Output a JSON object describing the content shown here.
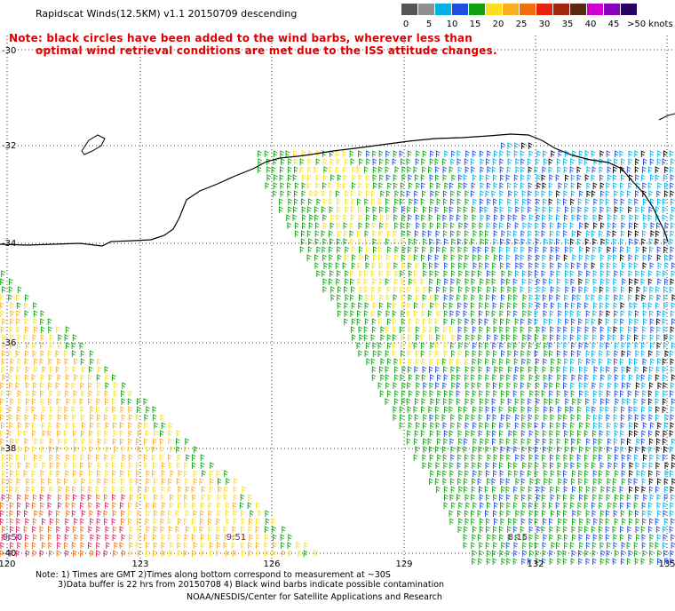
{
  "title": "Rapidscat Winds(12.5KM) v1.1 20150709 descending",
  "note": {
    "line1": "Note: black circles have been added to the wind barbs, wherever less than",
    "line2": "optimal wind retrieval conditions are met due to the ISS attitude changes."
  },
  "legend": {
    "ticks": [
      "0",
      "5",
      "10",
      "15",
      "20",
      "25",
      "30",
      "35",
      "40",
      "45"
    ],
    "unit": ">50 knots",
    "colors": [
      "#555555",
      "#909090",
      "#00b0e8",
      "#1d4ee0",
      "#10a010",
      "#f8e020",
      "#f8b020",
      "#f07010",
      "#e82010",
      "#a02810",
      "#5a2a10",
      "#d000d0",
      "#8a00c0",
      "#2a0068"
    ]
  },
  "axes": {
    "lat_labels": [
      "-30",
      "-32",
      "-34",
      "-36",
      "-38",
      "-40"
    ],
    "lon_labels": [
      "120",
      "123",
      "126",
      "129",
      "132",
      "135"
    ]
  },
  "pass_times": [
    "9:50",
    "9:51",
    "8:15"
  ],
  "footer": {
    "line1": "Note: 1) Times are GMT 2)Times along bottom correspond to measurement at ~30S",
    "line2": "3)Data buffer is 22 hrs from 20150708 4) Black wind barbs indicate possible contamination",
    "credit": "NOAA/NESDIS/Center for Satellite Applications and Research"
  }
}
